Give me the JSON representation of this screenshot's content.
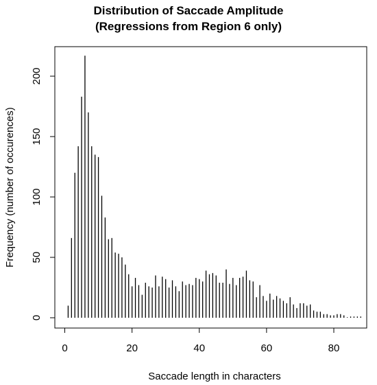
{
  "chart_data": {
    "type": "bar",
    "title": "Distribution of Saccade Amplitude",
    "subtitle": "(Regressions from Region 6 only)",
    "xlabel": "Saccade length in characters",
    "ylabel": "Frequency (number of occurences)",
    "xlim": [
      0,
      90
    ],
    "ylim": [
      0,
      225
    ],
    "xticks": [
      0,
      20,
      40,
      60,
      80
    ],
    "yticks": [
      0,
      50,
      100,
      150,
      200
    ],
    "grid": false,
    "x": [
      1,
      2,
      3,
      4,
      5,
      6,
      7,
      8,
      9,
      10,
      11,
      12,
      13,
      14,
      15,
      16,
      17,
      18,
      19,
      20,
      21,
      22,
      23,
      24,
      25,
      26,
      27,
      28,
      29,
      30,
      31,
      32,
      33,
      34,
      35,
      36,
      37,
      38,
      39,
      40,
      41,
      42,
      43,
      44,
      45,
      46,
      47,
      48,
      49,
      50,
      51,
      52,
      53,
      54,
      55,
      56,
      57,
      58,
      59,
      60,
      61,
      62,
      63,
      64,
      65,
      66,
      67,
      68,
      69,
      70,
      71,
      72,
      73,
      74,
      75,
      76,
      77,
      78,
      79,
      80,
      81,
      82,
      83,
      84,
      85,
      86,
      87,
      88
    ],
    "values": [
      10,
      66,
      120,
      142,
      183,
      217,
      170,
      142,
      135,
      133,
      101,
      83,
      65,
      66,
      54,
      53,
      50,
      44,
      36,
      26,
      33,
      27,
      19,
      29,
      26,
      25,
      35,
      26,
      34,
      32,
      25,
      31,
      26,
      22,
      30,
      27,
      28,
      27,
      33,
      32,
      30,
      39,
      36,
      37,
      35,
      29,
      29,
      40,
      28,
      33,
      27,
      33,
      34,
      39,
      31,
      30,
      17,
      27,
      18,
      14,
      20,
      15,
      18,
      16,
      14,
      12,
      17,
      11,
      8,
      12,
      12,
      10,
      11,
      6,
      5,
      5,
      3,
      3,
      2,
      2,
      3,
      3,
      2,
      0,
      1,
      1,
      1,
      1
    ]
  }
}
